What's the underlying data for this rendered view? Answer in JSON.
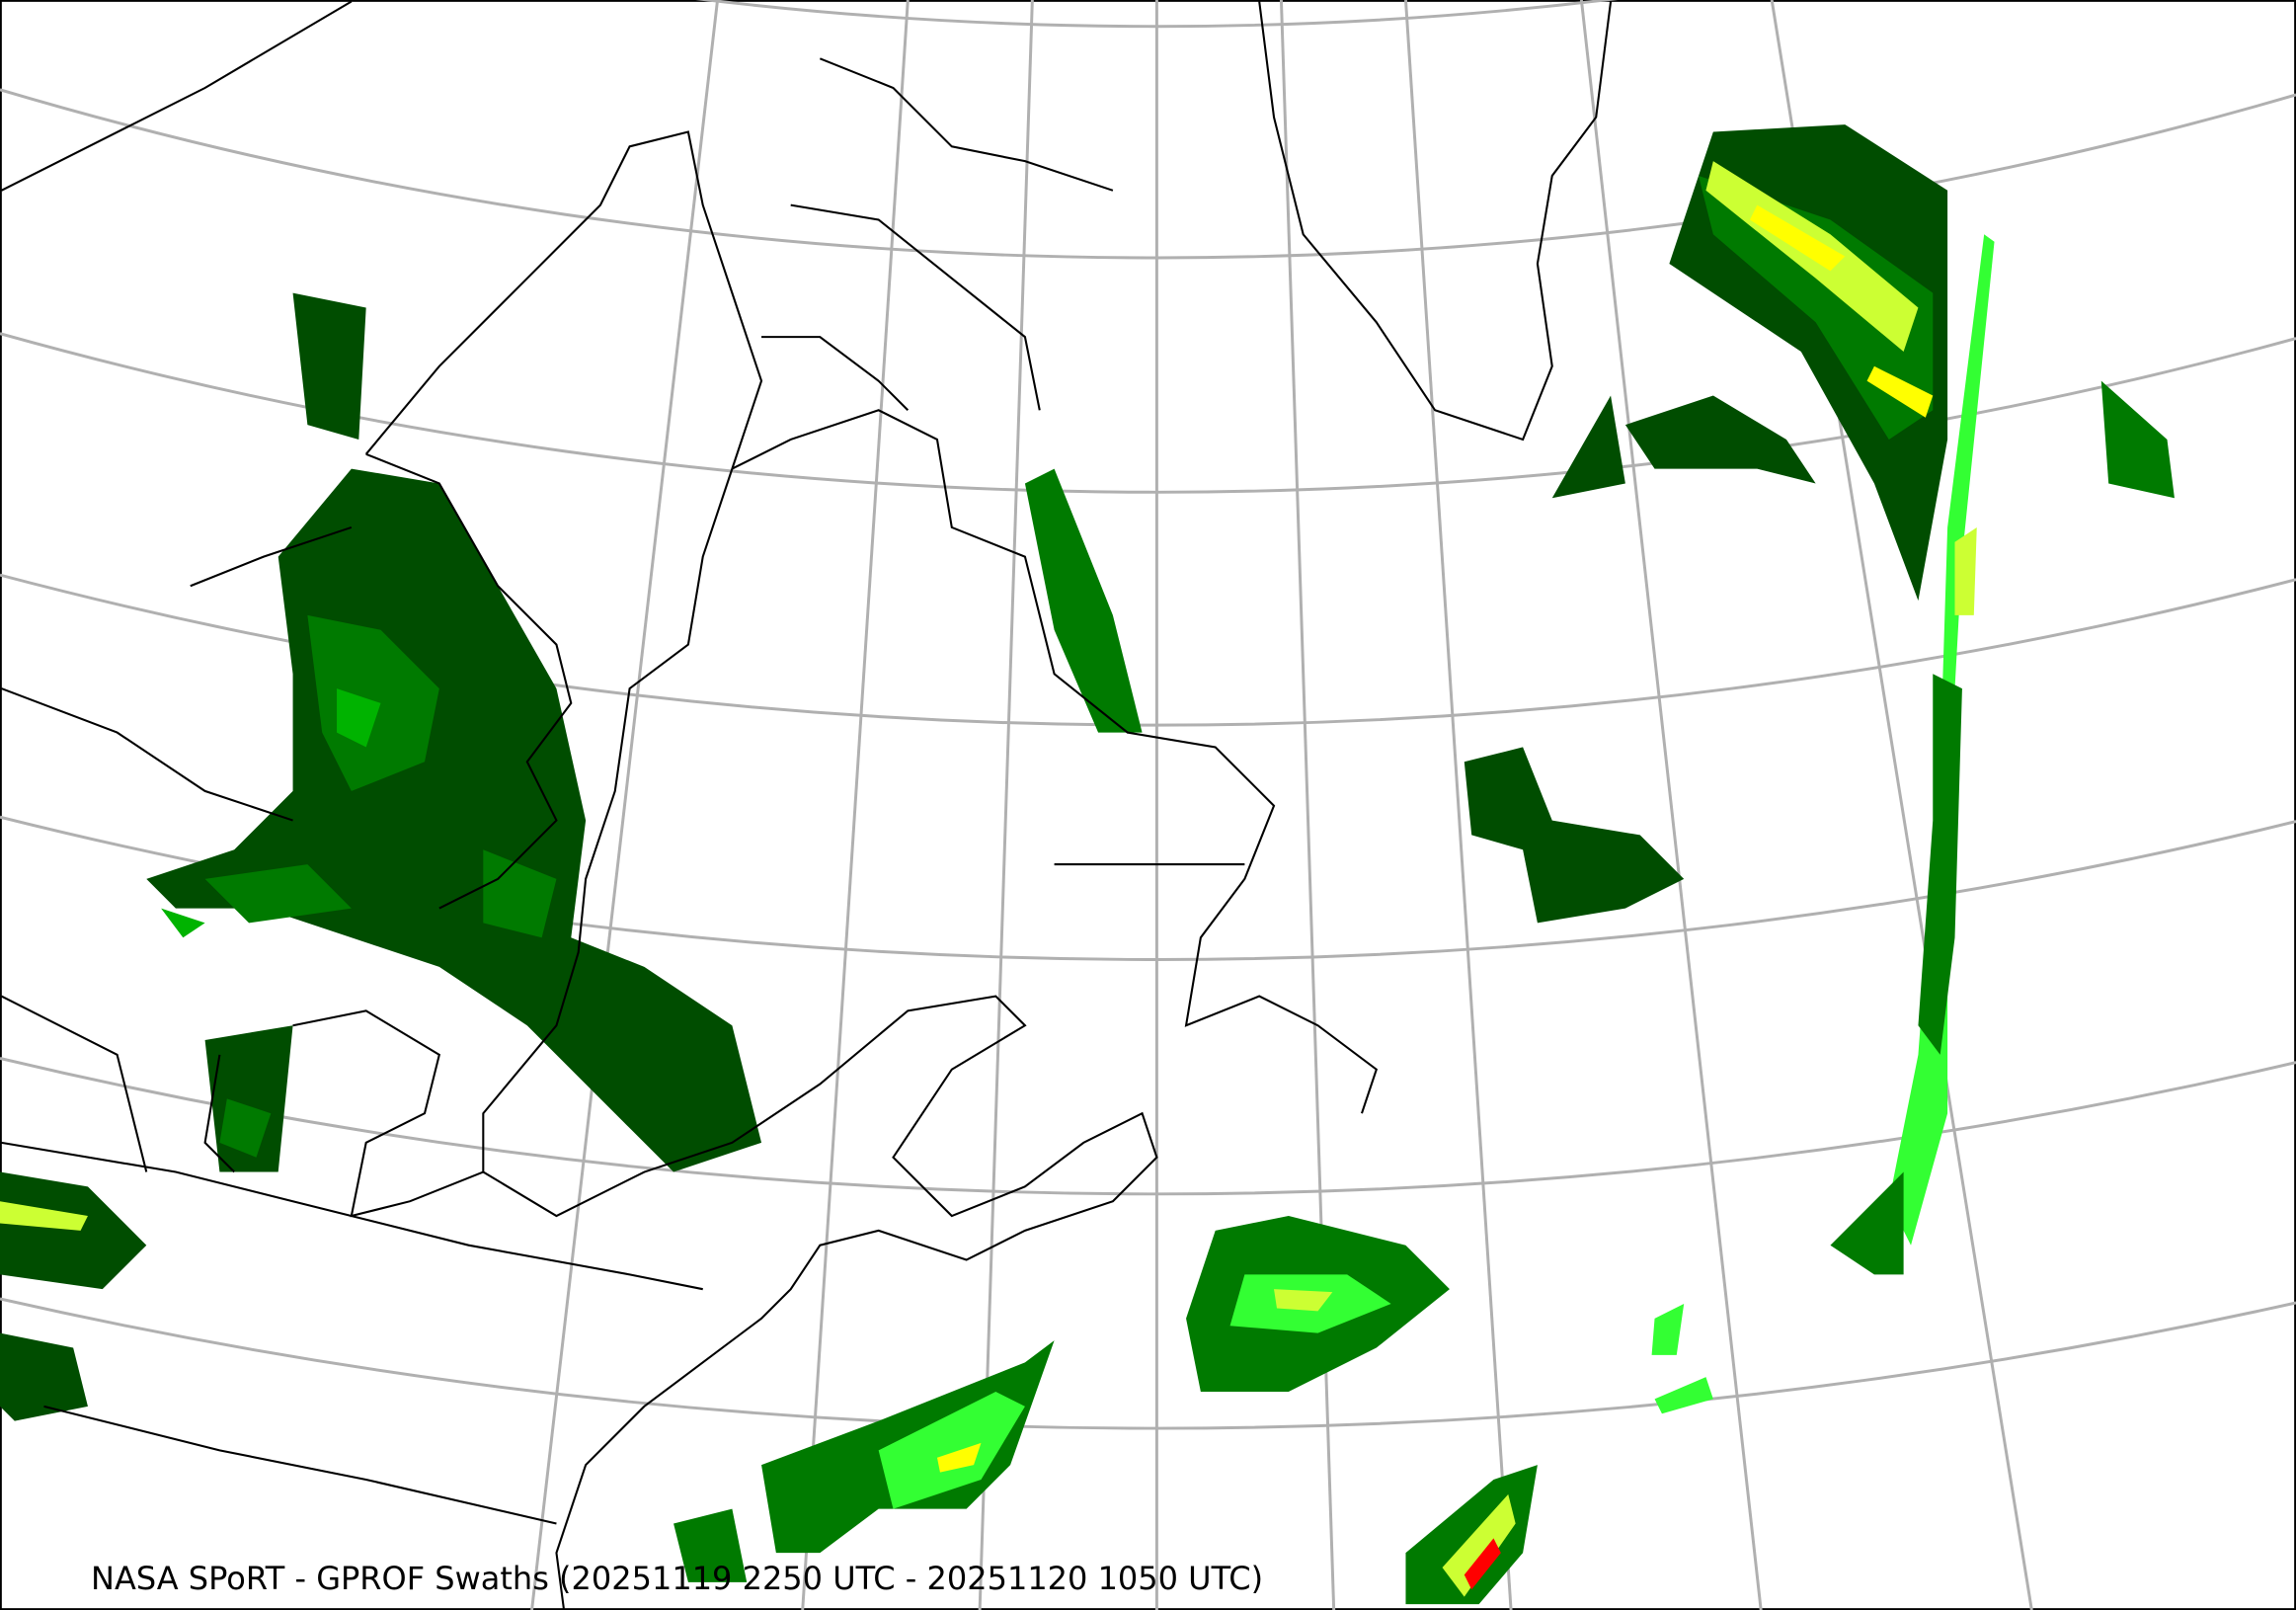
{
  "map": {
    "caption": "NASA SPoRT - GPROF Swaths (20251119 2250 UTC - 20251120 1050 UTC)",
    "projection": "polar conic, North Atlantic / eastern North America",
    "graticule_color": "#b0b0b0",
    "coastline_color": "#000000",
    "precip_colors": [
      "#004d00",
      "#007a00",
      "#00b300",
      "#33ff33",
      "#ccff33",
      "#ffff00",
      "#ff9900",
      "#ff0000"
    ]
  }
}
